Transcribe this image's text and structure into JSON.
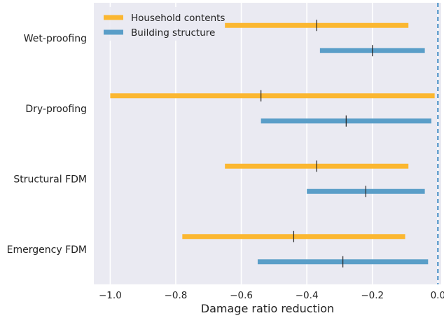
{
  "chart_data": {
    "type": "range",
    "xlabel": "Damage ratio reduction",
    "xlim": [
      -1.05,
      0.01
    ],
    "xticks": [
      -1.0,
      -0.8,
      -0.6,
      -0.4,
      -0.2,
      0.0
    ],
    "xtick_labels": [
      "−1.0",
      "−0.8",
      "−0.6",
      "−0.4",
      "−0.2",
      "0.0"
    ],
    "grid": "vertical",
    "legend_position": "top-left",
    "reference_line": {
      "x": 0.0,
      "style": "dashed",
      "color": "#2a7fbf"
    },
    "categories": [
      "Wet-proofing",
      "Dry-proofing",
      "Structural FDM",
      "Emergency FDM"
    ],
    "series": [
      {
        "name": "Household contents",
        "color": "#fbb731",
        "ranges": [
          {
            "min": -0.65,
            "max": -0.09,
            "mid": -0.37
          },
          {
            "min": -1.0,
            "max": -0.01,
            "mid": -0.54
          },
          {
            "min": -0.65,
            "max": -0.09,
            "mid": -0.37
          },
          {
            "min": -0.78,
            "max": -0.1,
            "mid": -0.44
          }
        ]
      },
      {
        "name": "Building structure",
        "color": "#5a9ec8",
        "ranges": [
          {
            "min": -0.36,
            "max": -0.04,
            "mid": -0.2
          },
          {
            "min": -0.54,
            "max": -0.02,
            "mid": -0.28
          },
          {
            "min": -0.4,
            "max": -0.04,
            "mid": -0.22
          },
          {
            "min": -0.55,
            "max": -0.03,
            "mid": -0.29
          }
        ]
      }
    ]
  }
}
